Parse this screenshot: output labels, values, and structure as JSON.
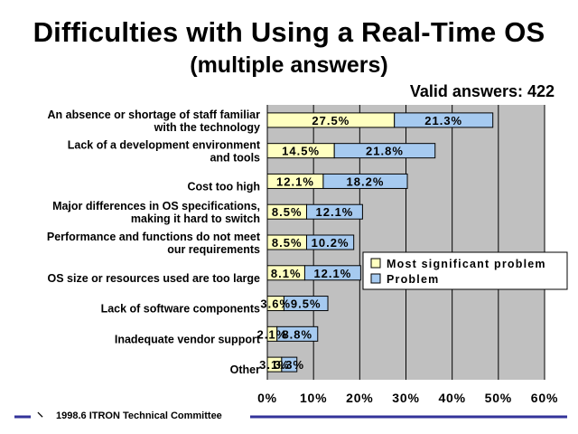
{
  "title": "Difficulties with Using a Real-Time OS",
  "subtitle": "(multiple answers)",
  "valid_answers": "Valid answers: 422",
  "footer": "1998.6  ITRON Technical Committee",
  "logo_glyph": "⸌",
  "colors": {
    "plot_bg": "#c0c0c0",
    "most_significant": "#ffffc0",
    "problem": "#a6caf0",
    "footer_line": "#33339a"
  },
  "chart_data": {
    "type": "bar",
    "orientation": "horizontal",
    "stacked": true,
    "categories": [
      [
        "An absence or shortage of staff familiar",
        "with the technology"
      ],
      [
        "Lack of a development environment",
        "and tools"
      ],
      [
        "Cost too high"
      ],
      [
        "Major differences in OS specifications,",
        "making it hard to switch"
      ],
      [
        "Performance and functions do not meet",
        "our requirements"
      ],
      [
        "OS size or resources used are too large"
      ],
      [
        "Lack of software components"
      ],
      [
        "Inadequate vendor support"
      ],
      [
        "Other"
      ]
    ],
    "series": [
      {
        "name": "Most significant problem",
        "values": [
          27.5,
          14.5,
          12.1,
          8.5,
          8.5,
          8.1,
          3.6,
          2.1,
          3.1
        ],
        "labels": [
          "27.5%",
          "14.5%",
          "12.1%",
          "8.5%",
          "8.5%",
          "8.1%",
          "3.6%",
          "2.1%",
          "3.1%"
        ]
      },
      {
        "name": "Problem",
        "values": [
          21.3,
          21.8,
          18.2,
          12.1,
          10.2,
          12.1,
          9.5,
          8.8,
          3.3
        ],
        "labels": [
          "21.3%",
          "21.8%",
          "18.2%",
          "12.1%",
          "10.2%",
          "12.1%",
          "9.5%",
          "8.8%",
          "3.3%"
        ]
      }
    ],
    "xlim": [
      0,
      60
    ],
    "xticks": [
      "0%",
      "10%",
      "20%",
      "30%",
      "40%",
      "50%",
      "60%"
    ],
    "grid": true,
    "legend": "right"
  }
}
